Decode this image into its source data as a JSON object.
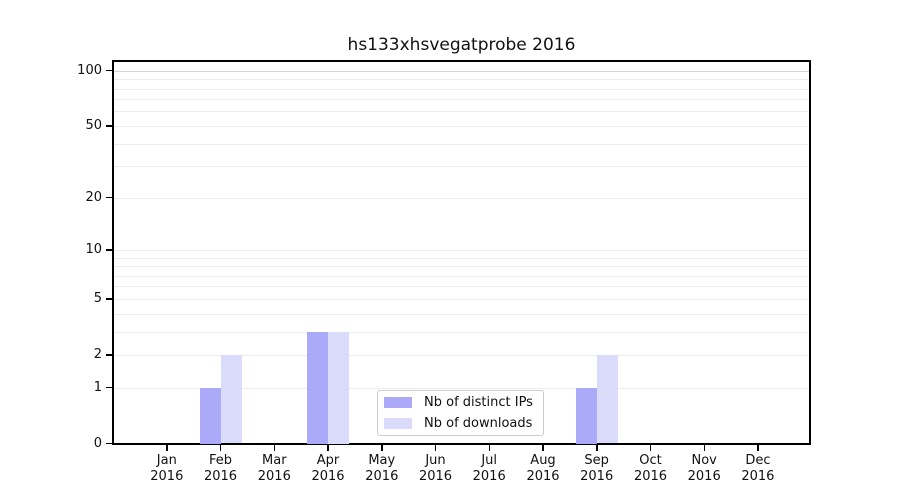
{
  "title": "hs133xhsvegatprobe 2016",
  "chart_data": {
    "type": "bar",
    "title": "hs133xhsvegatprobe 2016",
    "categories": [
      "Jan",
      "Feb",
      "Mar",
      "Apr",
      "May",
      "Jun",
      "Jul",
      "Aug",
      "Sep",
      "Oct",
      "Nov",
      "Dec"
    ],
    "year_label": "2016",
    "series": [
      {
        "name": "Nb of distinct IPs",
        "color": "#aaaaf8",
        "values": [
          0,
          1,
          0,
          3,
          0,
          0,
          0,
          0,
          1,
          0,
          0,
          0
        ]
      },
      {
        "name": "Nb of downloads",
        "color": "#dbdbfb",
        "values": [
          0,
          2,
          0,
          3,
          0,
          0,
          0,
          0,
          2,
          0,
          0,
          0
        ]
      }
    ],
    "xlabel": "",
    "ylabel": "",
    "yscale": "log1p",
    "ylim": [
      0,
      114
    ],
    "yticks": [
      0,
      1,
      2,
      5,
      10,
      20,
      50,
      100
    ],
    "grid": true,
    "grid_values": [
      1,
      2,
      3,
      4,
      5,
      6,
      7,
      8,
      9,
      10,
      20,
      30,
      40,
      50,
      60,
      70,
      80,
      90,
      100
    ],
    "grid_color": "#ececec",
    "major_grid_color": "#d4d4d4",
    "axis_color": "#000000",
    "legend_position": "lower-center",
    "legend_border_color": "#cccccc"
  }
}
